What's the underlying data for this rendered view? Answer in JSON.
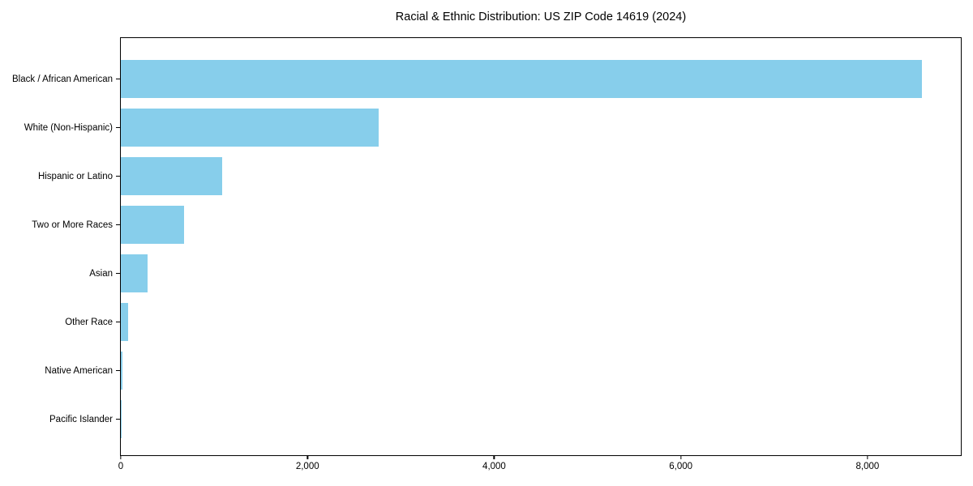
{
  "chart_data": {
    "type": "bar",
    "orientation": "horizontal",
    "title": "Racial & Ethnic Distribution: US ZIP Code 14619 (2024)",
    "categories": [
      "Black / African American",
      "White (Non-Hispanic)",
      "Hispanic or Latino",
      "Two or More Races",
      "Asian",
      "Other Race",
      "Native American",
      "Pacific Islander"
    ],
    "values": [
      8580,
      2760,
      1085,
      675,
      285,
      80,
      15,
      5
    ],
    "bar_color": "#87CEEB",
    "background_color": "#ffffff",
    "spine_color": "#000000",
    "xlim": [
      0,
      9000
    ],
    "x_ticks": [
      0,
      2000,
      4000,
      6000,
      8000
    ],
    "x_tick_labels": [
      "0",
      "2,000",
      "4,000",
      "6,000",
      "8,000"
    ],
    "xlabel": "",
    "ylabel": "",
    "grid": false,
    "legend": "none",
    "value_labels": "none"
  }
}
